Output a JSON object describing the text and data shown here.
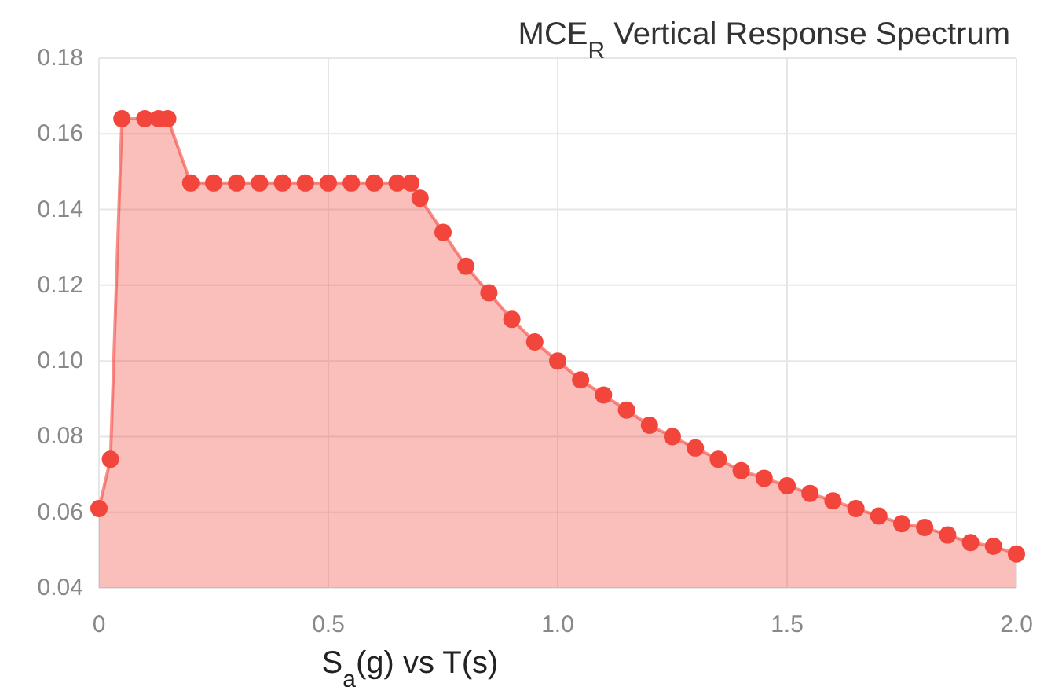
{
  "chart_data": {
    "type": "area",
    "title": "MCE$_{R}$ Vertical Response Spectrum",
    "xlabel": "S$_{a}$(g) vs T(s)",
    "xlim": [
      0,
      2
    ],
    "ylim": [
      0.04,
      0.18
    ],
    "xticks": [
      0,
      0.5,
      {
        "value": 1,
        "label": "1.0"
      },
      1.5,
      {
        "value": 2,
        "label": "2.0"
      }
    ],
    "yticks": [
      {
        "value": 0.04,
        "label": "0.04"
      },
      {
        "value": 0.06,
        "label": "0.06"
      },
      {
        "value": 0.08,
        "label": "0.08"
      },
      {
        "value": 0.1,
        "label": "0.10"
      },
      {
        "value": 0.12,
        "label": "0.12"
      },
      {
        "value": 0.14,
        "label": "0.14"
      },
      {
        "value": 0.16,
        "label": "0.16"
      },
      {
        "value": 0.18,
        "label": "0.18"
      }
    ],
    "grid": true,
    "marker": "circle",
    "line_style": "solid",
    "series": [
      {
        "color": "#f2463c",
        "x": [
          0,
          0.025,
          0.05,
          0.1,
          0.13,
          0.15,
          0.2,
          0.25,
          0.3,
          0.35,
          0.4,
          0.45,
          0.5,
          0.55,
          0.6,
          0.65,
          0.68,
          0.7,
          0.75,
          0.8,
          0.85,
          0.9,
          0.95,
          1.0,
          1.05,
          1.1,
          1.15,
          1.2,
          1.25,
          1.3,
          1.35,
          1.4,
          1.45,
          1.5,
          1.55,
          1.6,
          1.65,
          1.7,
          1.75,
          1.8,
          1.85,
          1.9,
          1.95,
          2.0
        ],
        "values": [
          0.061,
          0.074,
          0.164,
          0.164,
          0.164,
          0.164,
          0.147,
          0.147,
          0.147,
          0.147,
          0.147,
          0.147,
          0.147,
          0.147,
          0.147,
          0.147,
          0.147,
          0.143,
          0.134,
          0.125,
          0.118,
          0.111,
          0.105,
          0.1,
          0.095,
          0.091,
          0.087,
          0.083,
          0.08,
          0.077,
          0.074,
          0.071,
          0.069,
          0.067,
          0.065,
          0.063,
          0.061,
          0.059,
          0.057,
          0.056,
          0.054,
          0.052,
          0.051,
          0.049
        ]
      }
    ]
  }
}
